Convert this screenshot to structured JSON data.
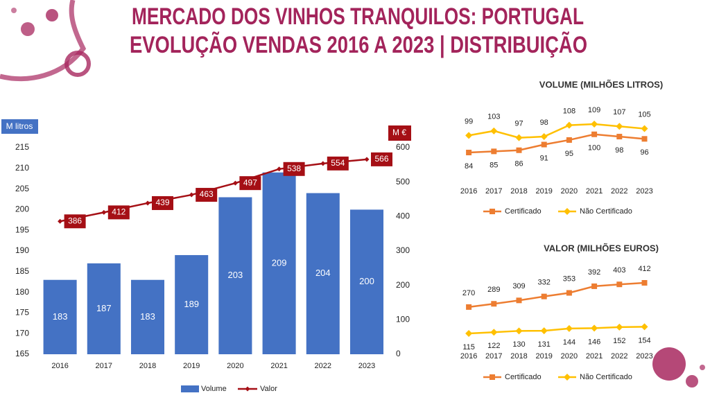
{
  "title_lines": [
    "MERCADO DOS VINHOS TRANQUILOS: PORTUGAL",
    "EVOLUÇÃO VENDAS 2016 A 2023 | DISTRIBUIÇÃO"
  ],
  "chart_data": [
    {
      "type": "combo",
      "categories": [
        "2016",
        "2017",
        "2018",
        "2019",
        "2020",
        "2021",
        "2022",
        "2023"
      ],
      "y_label": "M litros",
      "y2_label": "M €",
      "ylim": [
        165,
        215
      ],
      "yticks": [
        165,
        170,
        175,
        180,
        185,
        190,
        195,
        200,
        205,
        210,
        215
      ],
      "y2lim": [
        0,
        600
      ],
      "y2ticks": [
        0,
        100,
        200,
        300,
        400,
        500,
        600
      ],
      "legend": "bottom",
      "series": [
        {
          "name": "Volume",
          "type": "bar",
          "color": "#4472c4",
          "values": [
            183,
            187,
            183,
            189,
            203,
            209,
            204,
            200
          ]
        },
        {
          "name": "Valor",
          "type": "line",
          "axis": "y2",
          "color": "#a50f15",
          "values": [
            386,
            412,
            439,
            463,
            497,
            538,
            554,
            566
          ]
        }
      ]
    },
    {
      "type": "line",
      "title": "VOLUME (MILHÕES LITROS)",
      "categories": [
        "2016",
        "2017",
        "2018",
        "2019",
        "2020",
        "2021",
        "2022",
        "2023"
      ],
      "legend": "bottom",
      "series": [
        {
          "name": "Certificado",
          "color": "#ed7d31",
          "marker": "square",
          "label_position": "below",
          "values": [
            84,
            85,
            86,
            91,
            95,
            100,
            98,
            96
          ]
        },
        {
          "name": "Não Certificado",
          "color": "#ffc000",
          "marker": "diamond",
          "label_position": "above",
          "values": [
            99,
            103,
            97,
            98,
            108,
            109,
            107,
            105
          ]
        }
      ]
    },
    {
      "type": "line",
      "title": "VALOR (MILHÕES EUROS)",
      "categories": [
        "2016",
        "2017",
        "2018",
        "2019",
        "2020",
        "2021",
        "2022",
        "2023"
      ],
      "legend": "bottom",
      "series": [
        {
          "name": "Certificado",
          "color": "#ed7d31",
          "marker": "square",
          "label_position": "above",
          "values": [
            270,
            289,
            309,
            332,
            353,
            392,
            403,
            412
          ]
        },
        {
          "name": "Não Certificado",
          "color": "#ffc000",
          "marker": "diamond",
          "label_position": "below",
          "values": [
            115,
            122,
            130,
            131,
            144,
            146,
            152,
            154
          ]
        }
      ]
    }
  ]
}
